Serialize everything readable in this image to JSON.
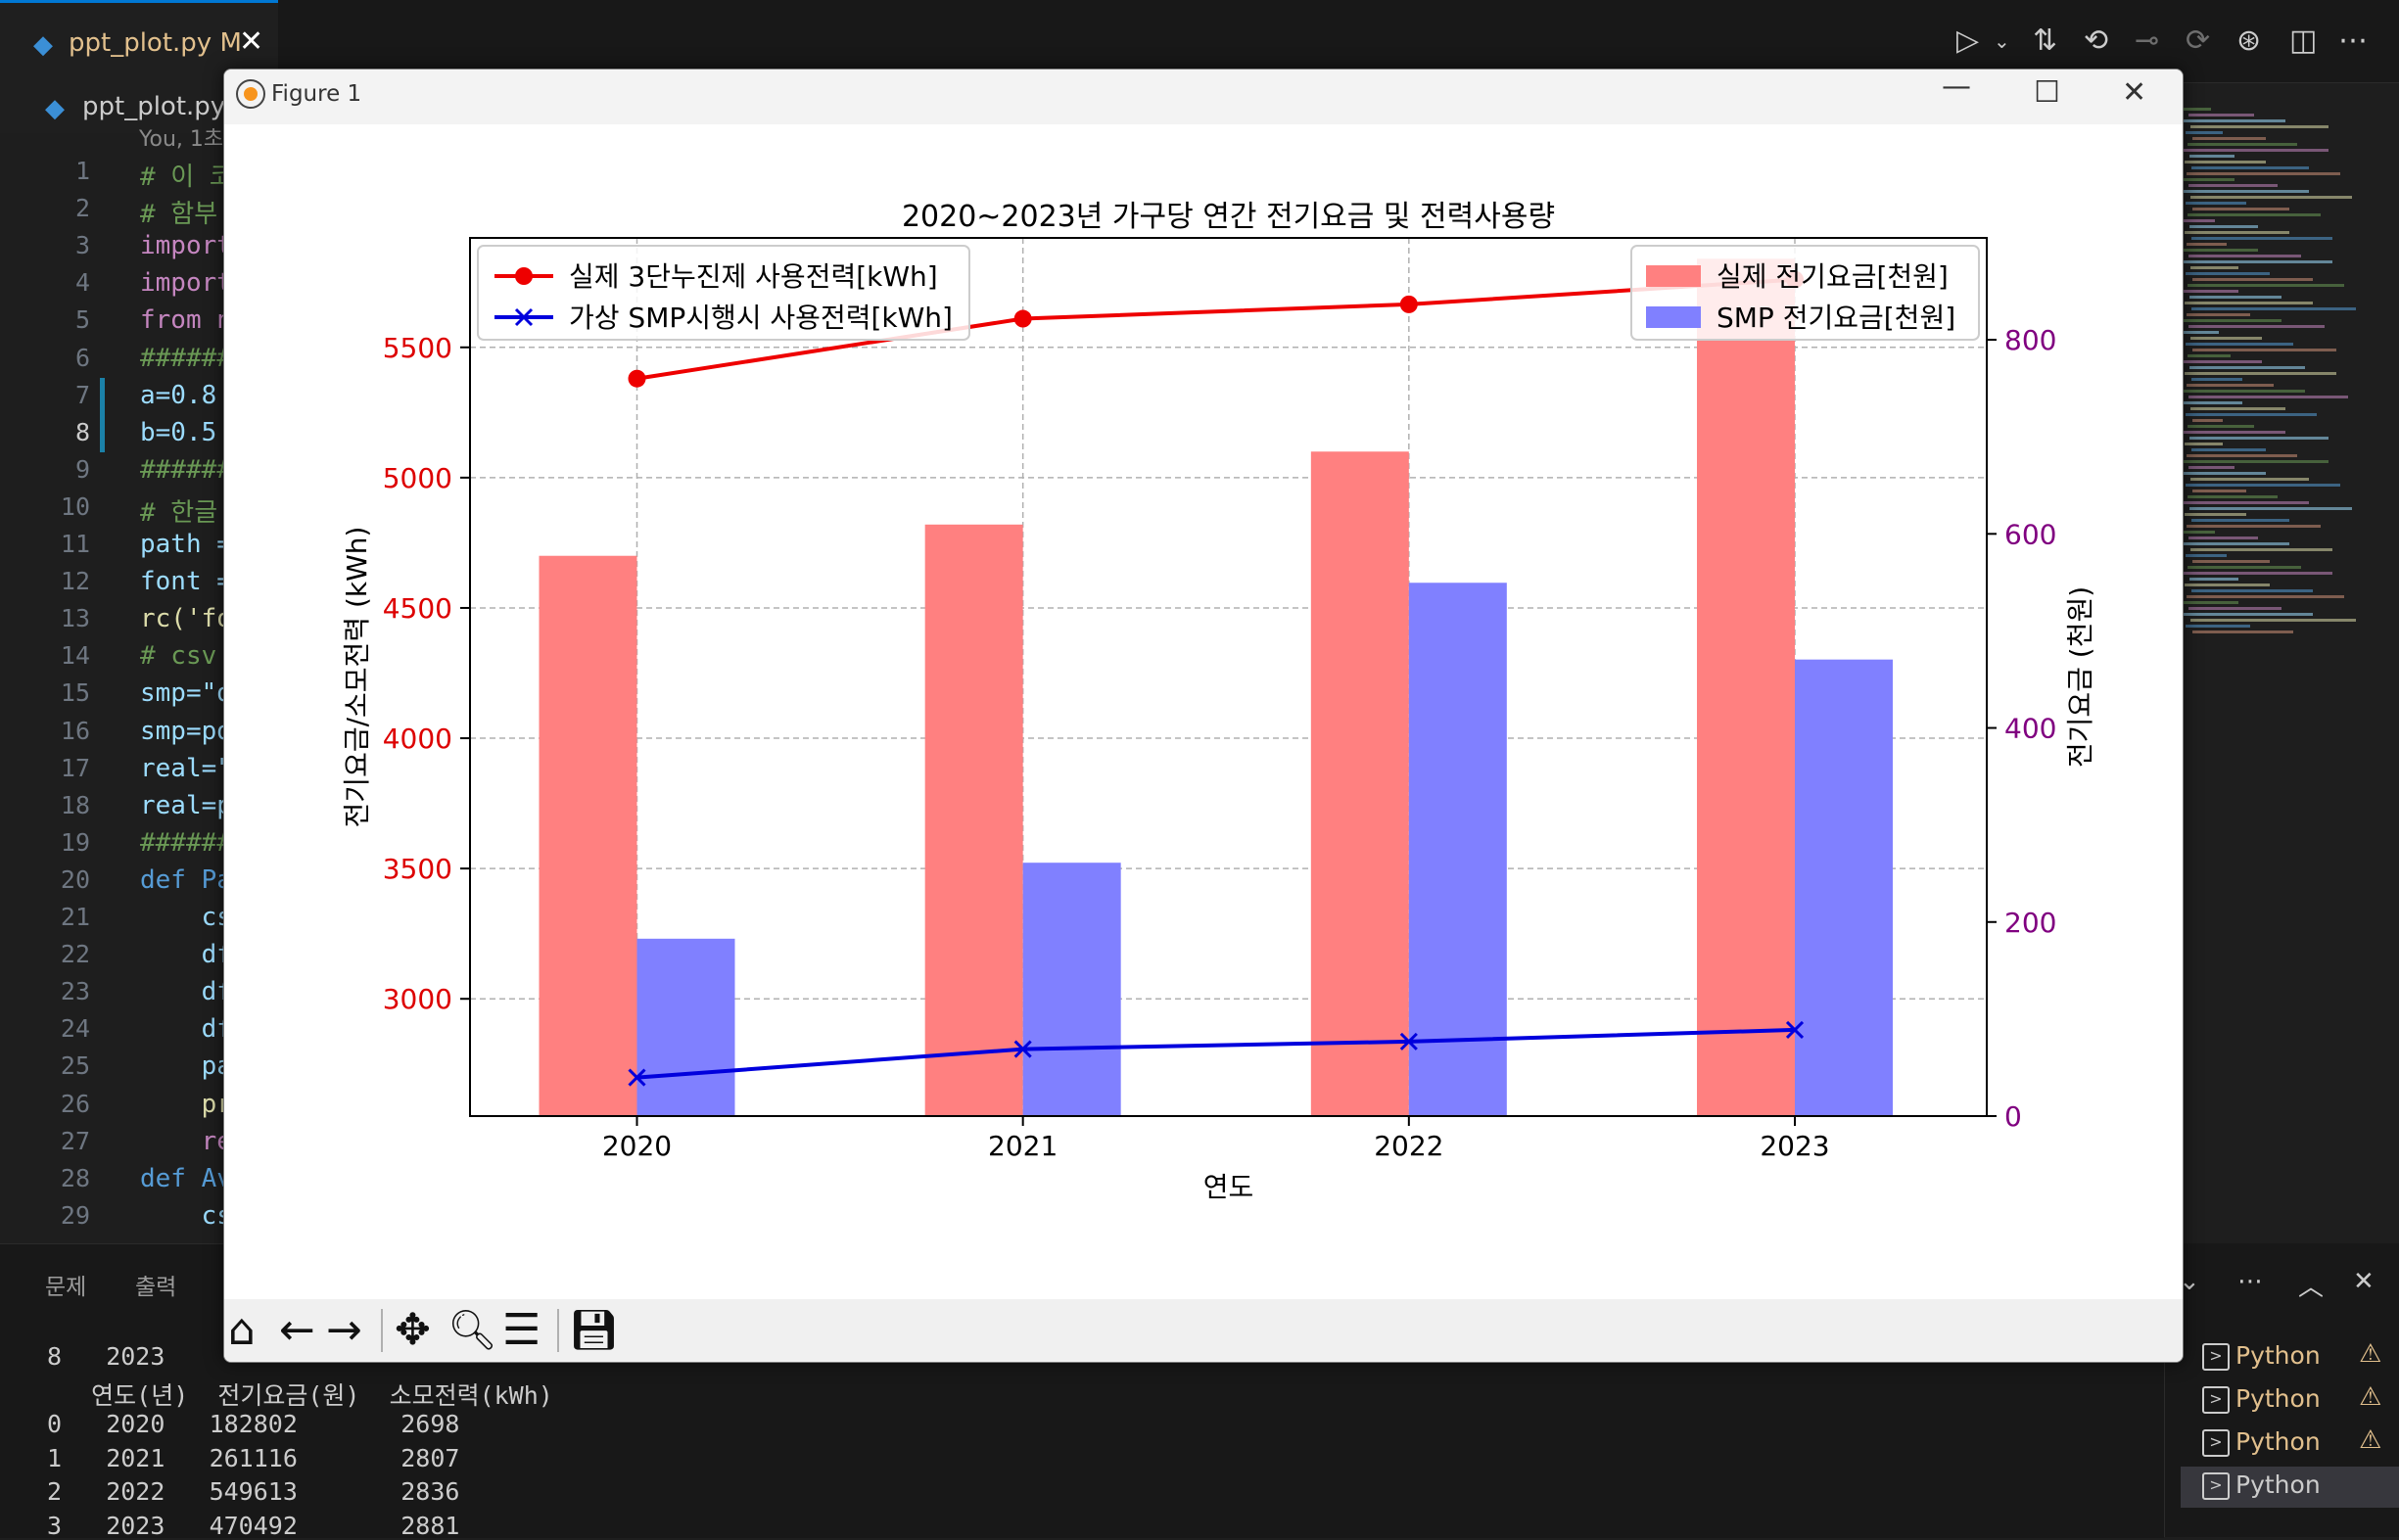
{
  "editor": {
    "tab": {
      "name": "ppt_plot.py",
      "modified": "M",
      "close": "✕"
    },
    "breadcrumb": "ppt_plot.py",
    "breadcrumb_sep": "›",
    "blame": "You, 1초",
    "code_lines": [
      {
        "n": "1",
        "text": "# 이 코",
        "color": "#6a9955"
      },
      {
        "n": "2",
        "text": "# 함부",
        "color": "#6a9955"
      },
      {
        "n": "3",
        "text": "import",
        "color": "#c586c0"
      },
      {
        "n": "4",
        "text": "import",
        "color": "#c586c0"
      },
      {
        "n": "5",
        "text": "from n",
        "color": "#c586c0"
      },
      {
        "n": "6",
        "text": "######",
        "color": "#6a9955"
      },
      {
        "n": "7",
        "text": "a=0.8",
        "color": "#9cdcfe"
      },
      {
        "n": "8",
        "text": "b=0.5",
        "color": "#9cdcfe"
      },
      {
        "n": "9",
        "text": "######",
        "color": "#6a9955"
      },
      {
        "n": "10",
        "text": "# 한글",
        "color": "#6a9955"
      },
      {
        "n": "11",
        "text": "path =",
        "color": "#9cdcfe"
      },
      {
        "n": "12",
        "text": "font =",
        "color": "#9cdcfe"
      },
      {
        "n": "13",
        "text": "rc('fo",
        "color": "#dcdcaa"
      },
      {
        "n": "14",
        "text": "# csv",
        "color": "#6a9955"
      },
      {
        "n": "15",
        "text": "smp=\"d",
        "color": "#9cdcfe"
      },
      {
        "n": "16",
        "text": "smp=pd",
        "color": "#9cdcfe"
      },
      {
        "n": "17",
        "text": "real=\"",
        "color": "#9cdcfe"
      },
      {
        "n": "18",
        "text": "real=p",
        "color": "#9cdcfe"
      },
      {
        "n": "19",
        "text": "######",
        "color": "#6a9955"
      },
      {
        "n": "20",
        "text": "def Pa",
        "color": "#569cd6"
      },
      {
        "n": "21",
        "text": "    cs",
        "color": "#9cdcfe"
      },
      {
        "n": "22",
        "text": "    df",
        "color": "#9cdcfe"
      },
      {
        "n": "23",
        "text": "    df",
        "color": "#9cdcfe"
      },
      {
        "n": "24",
        "text": "    df",
        "color": "#9cdcfe"
      },
      {
        "n": "25",
        "text": "    pa",
        "color": "#9cdcfe"
      },
      {
        "n": "26",
        "text": "    pr",
        "color": "#dcdcaa"
      },
      {
        "n": "27",
        "text": "    re",
        "color": "#c586c0"
      },
      {
        "n": "28",
        "text": "def Av",
        "color": "#569cd6"
      },
      {
        "n": "29",
        "text": "    cs",
        "color": "#9cdcfe"
      }
    ]
  },
  "panel": {
    "tabs": [
      "문제",
      "출력"
    ],
    "terminal_lines": [
      "8   2023",
      "   연도(년)  전기요금(원)  소모전력(kWh)",
      "0   2020   182802       2698",
      "1   2021   261116       2807",
      "2   2022   549613       2836",
      "3   2023   470492       2881"
    ],
    "terminals": [
      {
        "label": "Python",
        "warn": true
      },
      {
        "label": "Python",
        "warn": true
      },
      {
        "label": "Python",
        "warn": true
      },
      {
        "label": "Python",
        "warn": false
      }
    ]
  },
  "figure": {
    "window_title": "Figure 1",
    "controls": {
      "minimize": "—",
      "maximize": "☐",
      "close": "✕"
    },
    "toolbar": [
      "home-icon",
      "back-icon",
      "forward-icon",
      "pan-icon",
      "zoom-icon",
      "configure-icon",
      "save-icon"
    ]
  },
  "colors": {
    "accent": "#0078d4",
    "real_bar": "#ff8080",
    "smp_bar": "#8080ff",
    "real_line": "#ee0000",
    "smp_line": "#0000dd",
    "left_axis": "#dd0000",
    "right_axis": "#800080"
  },
  "chart_data": {
    "type": "bar",
    "title": "2020~2023년 가구당 연간 전기요금 및 전력사용량",
    "xlabel": "연도",
    "ylabel": "전기요금/소모전력 (kWh)",
    "ylabel_right": "전기요금 (천원)",
    "categories": [
      "2020",
      "2021",
      "2022",
      "2023"
    ],
    "ylim_left": [
      2550,
      5920
    ],
    "ylim_right": [
      0,
      905
    ],
    "yticks_left": [
      3000,
      3500,
      4000,
      4500,
      5000,
      5500
    ],
    "yticks_right": [
      0,
      200,
      400,
      600,
      800
    ],
    "grid": true,
    "bar_series": [
      {
        "name": "실제 전기요금[천원]",
        "axis": "left",
        "values": [
          4700,
          4820,
          5100,
          5840
        ]
      },
      {
        "name": "SMP 전기요금[천원]",
        "axis": "right",
        "values": [
          182.8,
          261.1,
          549.6,
          470.5
        ]
      }
    ],
    "line_series": [
      {
        "name": "실제 3단누진제 사용전력[kWh]",
        "axis": "left",
        "marker": "o",
        "values": [
          5380,
          5610,
          5665,
          5760
        ]
      },
      {
        "name": "가상 SMP시행시 사용전력[kWh]",
        "axis": "left",
        "marker": "x",
        "values": [
          2698,
          2807,
          2836,
          2881
        ]
      }
    ],
    "legend_left": "upper-left",
    "legend_right": "upper-right"
  }
}
